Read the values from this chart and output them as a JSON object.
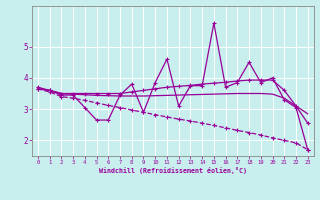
{
  "xlabel": "Windchill (Refroidissement éolien,°C)",
  "bg_color": "#c8eeee",
  "grid_color": "#aadddd",
  "line_color": "#990099",
  "spine_color": "#888888",
  "xlim": [
    -0.5,
    23.5
  ],
  "ylim": [
    1.5,
    6.3
  ],
  "yticks": [
    2,
    3,
    4,
    5
  ],
  "xticks": [
    0,
    1,
    2,
    3,
    4,
    5,
    6,
    7,
    8,
    9,
    10,
    11,
    12,
    13,
    14,
    15,
    16,
    17,
    18,
    19,
    20,
    21,
    22,
    23
  ],
  "series": {
    "jagged": [
      3.7,
      3.6,
      3.45,
      3.45,
      3.05,
      2.65,
      2.65,
      3.45,
      3.8,
      2.9,
      3.85,
      4.6,
      3.1,
      3.75,
      3.75,
      5.75,
      3.7,
      3.85,
      4.5,
      3.85,
      4.0,
      3.3,
      3.05,
      1.7
    ],
    "smooth_ascending": [
      3.65,
      3.6,
      3.5,
      3.5,
      3.5,
      3.5,
      3.5,
      3.5,
      3.55,
      3.6,
      3.65,
      3.7,
      3.73,
      3.76,
      3.8,
      3.83,
      3.86,
      3.9,
      3.93,
      3.93,
      3.93,
      3.6,
      3.1,
      2.55
    ],
    "flat_line": [
      3.65,
      3.6,
      3.5,
      3.48,
      3.46,
      3.44,
      3.43,
      3.42,
      3.42,
      3.42,
      3.43,
      3.44,
      3.45,
      3.46,
      3.47,
      3.48,
      3.49,
      3.5,
      3.5,
      3.5,
      3.48,
      3.35,
      3.1,
      2.85
    ],
    "linear_down": [
      3.65,
      3.55,
      3.4,
      3.35,
      3.28,
      3.2,
      3.12,
      3.05,
      2.97,
      2.9,
      2.82,
      2.75,
      2.68,
      2.62,
      2.55,
      2.48,
      2.4,
      2.32,
      2.25,
      2.17,
      2.08,
      2.0,
      1.92,
      1.7
    ]
  }
}
